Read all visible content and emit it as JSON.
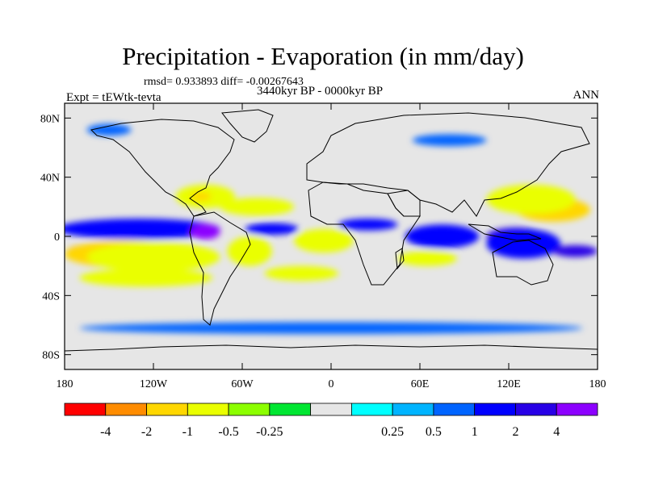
{
  "title": "Precipitation - Evaporation (in mm/day)",
  "stats": "rmsd= 0.933893 diff= -0.00267643",
  "experiment": "Expt = tEWtk-tevta",
  "period": "3440kyr BP - 0000kyr BP",
  "season": "ANN",
  "chart_data": {
    "type": "heatmap",
    "title": "Precipitation - Evaporation (in mm/day)",
    "subtitle": "3440kyr BP - 0000kyr BP",
    "projection": "cylindrical equidistant",
    "xlim": [
      -180,
      180
    ],
    "ylim": [
      -90,
      90
    ],
    "x_ticks": [
      {
        "value": -180,
        "label": "180"
      },
      {
        "value": -120,
        "label": "120W"
      },
      {
        "value": -60,
        "label": "60W"
      },
      {
        "value": 0,
        "label": "0"
      },
      {
        "value": 60,
        "label": "60E"
      },
      {
        "value": 120,
        "label": "120E"
      },
      {
        "value": 180,
        "label": "180"
      }
    ],
    "y_ticks": [
      {
        "value": 80,
        "label": "80N"
      },
      {
        "value": 40,
        "label": "40N"
      },
      {
        "value": 0,
        "label": "0"
      },
      {
        "value": -40,
        "label": "40S"
      },
      {
        "value": -80,
        "label": "80S"
      }
    ],
    "colorbar": {
      "bins": [
        {
          "color": "#ff0000"
        },
        {
          "color": "#ff8c00"
        },
        {
          "color": "#ffd700"
        },
        {
          "color": "#eaff00"
        },
        {
          "color": "#8cff00"
        },
        {
          "color": "#00e632"
        },
        {
          "color": "#e6e6e6"
        },
        {
          "color": "#00ffff"
        },
        {
          "color": "#00b4ff"
        },
        {
          "color": "#0064ff"
        },
        {
          "color": "#0000ff"
        },
        {
          "color": "#2800e6"
        },
        {
          "color": "#8c00ff"
        }
      ],
      "labels": [
        "-4",
        "-2",
        "-1",
        "-0.5",
        "-0.25",
        "0.25",
        "0.5",
        "1",
        "2",
        "4"
      ]
    },
    "anomaly_regions": [
      {
        "name": "east-pacific-south-min",
        "category": "-4",
        "lon": -158,
        "lat": -10,
        "rlon": 20,
        "rlat": 5
      },
      {
        "name": "east-pacific-south-neg",
        "category": "-1",
        "lon": -140,
        "lat": -12,
        "rlon": 40,
        "rlat": 9
      },
      {
        "name": "east-pacific-south-mod",
        "category": "-0.5",
        "lon": -120,
        "lat": -14,
        "rlon": 45,
        "rlat": 10
      },
      {
        "name": "pacific-itcz-max",
        "category": "2",
        "lon": -130,
        "lat": 5,
        "rlon": 50,
        "rlat": 4
      },
      {
        "name": "pacific-itcz-edge",
        "category": "1",
        "lon": -130,
        "lat": 5,
        "rlon": 55,
        "rlat": 7
      },
      {
        "name": "central-america-wet",
        "category": "4",
        "lon": -85,
        "lat": 3,
        "rlon": 10,
        "rlat": 5
      },
      {
        "name": "south-pacific-band",
        "category": "-0.5",
        "lon": -125,
        "lat": -28,
        "rlon": 45,
        "rlat": 6
      },
      {
        "name": "north-america-dry",
        "category": "-0.5",
        "lon": -85,
        "lat": 27,
        "rlon": 20,
        "rlat": 8
      },
      {
        "name": "gulf-mexico-dry",
        "category": "-1",
        "lon": -88,
        "lat": 27,
        "rlon": 7,
        "rlat": 3
      },
      {
        "name": "atlantic-north-dry",
        "category": "-0.5",
        "lon": -50,
        "lat": 20,
        "rlon": 25,
        "rlat": 6
      },
      {
        "name": "atlantic-itcz-wet",
        "category": "1",
        "lon": -40,
        "lat": 5,
        "rlon": 18,
        "rlat": 4
      },
      {
        "name": "west-africa-dry",
        "category": "-2",
        "lon": -5,
        "lat": -5,
        "rlon": 12,
        "rlat": 5
      },
      {
        "name": "west-africa-dry-edge",
        "category": "-0.5",
        "lon": -5,
        "lat": -3,
        "rlon": 20,
        "rlat": 8
      },
      {
        "name": "brazil-dry",
        "category": "-0.5",
        "lon": -55,
        "lat": -10,
        "rlon": 15,
        "rlat": 10
      },
      {
        "name": "south-atlantic-band",
        "category": "-0.5",
        "lon": -20,
        "lat": -25,
        "rlon": 25,
        "rlat": 5
      },
      {
        "name": "sahel-wet",
        "category": "1",
        "lon": 25,
        "lat": 8,
        "rlon": 20,
        "rlat": 4
      },
      {
        "name": "indian-ocean-wet",
        "category": "2",
        "lon": 75,
        "lat": 3,
        "rlon": 15,
        "rlat": 5
      },
      {
        "name": "indian-ocean-band",
        "category": "1",
        "lon": 75,
        "lat": 0,
        "rlon": 25,
        "rlat": 8
      },
      {
        "name": "south-indian-dry",
        "category": "-0.5",
        "lon": 65,
        "lat": -15,
        "rlon": 20,
        "rlat": 5
      },
      {
        "name": "west-pacific-dry",
        "category": "-1",
        "lon": 150,
        "lat": 18,
        "rlon": 25,
        "rlat": 8
      },
      {
        "name": "west-pacific-dry-max",
        "category": "-4",
        "lon": 138,
        "lat": 17,
        "rlon": 5,
        "rlat": 2
      },
      {
        "name": "east-asia-dry",
        "category": "-0.5",
        "lon": 135,
        "lat": 25,
        "rlon": 30,
        "rlat": 10
      },
      {
        "name": "maritime-wet",
        "category": "2",
        "lon": 125,
        "lat": 0,
        "rlon": 20,
        "rlat": 6
      },
      {
        "name": "maritime-wet-edge",
        "category": "1",
        "lon": 130,
        "lat": -5,
        "rlon": 25,
        "rlat": 10
      },
      {
        "name": "south-pacific-wet",
        "category": "2",
        "lon": 165,
        "lat": -10,
        "rlon": 15,
        "rlat": 4
      },
      {
        "name": "southern-ocean-ring",
        "category": "0.5",
        "lon": 0,
        "lat": -62,
        "rlon": 170,
        "rlat": 4
      },
      {
        "name": "arctic-patch-1",
        "category": "0.5",
        "lon": -150,
        "lat": 72,
        "rlon": 15,
        "rlat": 4
      },
      {
        "name": "arctic-patch-2",
        "category": "0.5",
        "lon": 80,
        "lat": 65,
        "rlon": 25,
        "rlat": 4
      }
    ]
  }
}
